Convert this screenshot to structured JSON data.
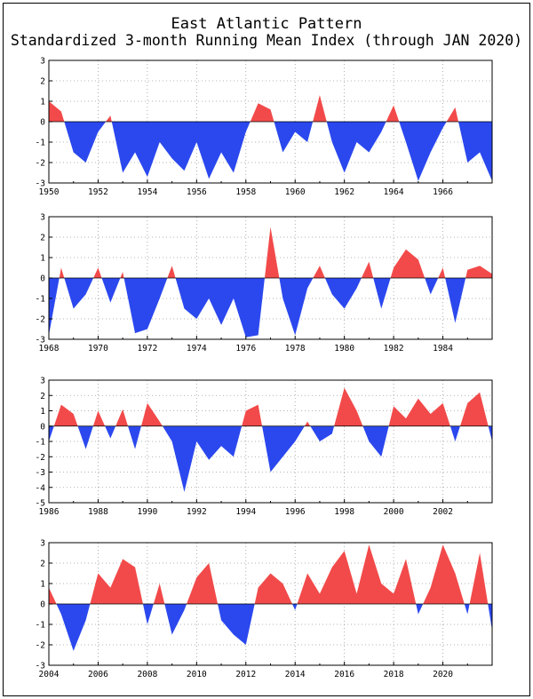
{
  "title": "East Atlantic Pattern",
  "subtitle": "Standardized 3-month Running Mean Index (through JAN 2020)",
  "colors": {
    "positive": "#f24a4a",
    "negative": "#2b48ee",
    "axis": "#000000",
    "grid": "#9a9a9a"
  },
  "chart_data": [
    {
      "type": "area",
      "ylim": [
        -3,
        3
      ],
      "yticks": [
        "3",
        "2",
        "1",
        "0",
        "-1",
        "-2",
        "-3"
      ],
      "xlim": [
        1950,
        1968
      ],
      "xticks": [
        "1950",
        "1952",
        "1954",
        "1956",
        "1958",
        "1960",
        "1962",
        "1964",
        "1966"
      ],
      "grid": true,
      "x": [
        1950,
        1950.5,
        1951,
        1951.5,
        1952,
        1952.5,
        1953,
        1953.5,
        1954,
        1954.5,
        1955,
        1955.5,
        1956,
        1956.5,
        1957,
        1957.5,
        1958,
        1958.5,
        1959,
        1959.5,
        1960,
        1960.5,
        1961,
        1961.5,
        1962,
        1962.5,
        1963,
        1963.5,
        1964,
        1964.5,
        1965,
        1965.5,
        1966,
        1966.5,
        1967,
        1967.5,
        1968
      ],
      "values": [
        1.0,
        0.5,
        -1.5,
        -2.0,
        -0.5,
        0.3,
        -2.5,
        -1.5,
        -2.7,
        -1.0,
        -1.8,
        -2.4,
        -1.0,
        -2.8,
        -1.5,
        -2.5,
        -0.5,
        0.9,
        0.6,
        -1.5,
        -0.5,
        -1.0,
        1.3,
        -1.0,
        -2.5,
        -1.0,
        -1.5,
        -0.5,
        0.8,
        -1.0,
        -2.9,
        -1.5,
        -0.3,
        0.7,
        -2.0,
        -1.5,
        -2.9
      ]
    },
    {
      "type": "area",
      "ylim": [
        -3,
        3
      ],
      "yticks": [
        "3",
        "2",
        "1",
        "0",
        "-1",
        "-2",
        "-3"
      ],
      "xlim": [
        1968,
        1986
      ],
      "xticks": [
        "1968",
        "1970",
        "1972",
        "1974",
        "1976",
        "1978",
        "1980",
        "1982",
        "1984"
      ],
      "grid": true,
      "x": [
        1968,
        1968.5,
        1969,
        1969.5,
        1970,
        1970.5,
        1971,
        1971.5,
        1972,
        1972.5,
        1973,
        1973.5,
        1974,
        1974.5,
        1975,
        1975.5,
        1976,
        1976.5,
        1977,
        1977.5,
        1978,
        1978.5,
        1979,
        1979.5,
        1980,
        1980.5,
        1981,
        1981.5,
        1982,
        1982.5,
        1983,
        1983.5,
        1984,
        1984.5,
        1985,
        1985.5,
        1986
      ],
      "values": [
        -2.8,
        0.5,
        -1.5,
        -0.8,
        0.5,
        -1.2,
        0.3,
        -2.7,
        -2.5,
        -1.0,
        0.6,
        -1.5,
        -2.0,
        -1.0,
        -2.3,
        -1.0,
        -2.9,
        -2.8,
        2.5,
        -1.0,
        -2.8,
        -0.5,
        0.6,
        -0.8,
        -1.5,
        -0.5,
        0.8,
        -1.5,
        0.5,
        1.4,
        0.9,
        -0.8,
        0.5,
        -2.2,
        0.4,
        0.6,
        0.2
      ]
    },
    {
      "type": "area",
      "ylim": [
        -5,
        3
      ],
      "yticks": [
        "3",
        "2",
        "1",
        "0",
        "-1",
        "-2",
        "-3",
        "-4",
        "-5"
      ],
      "xlim": [
        1986,
        2004
      ],
      "xticks": [
        "1986",
        "1988",
        "1990",
        "1992",
        "1994",
        "1996",
        "1998",
        "2000",
        "2002"
      ],
      "grid": true,
      "x": [
        1986,
        1986.5,
        1987,
        1987.5,
        1988,
        1988.5,
        1989,
        1989.5,
        1990,
        1990.5,
        1991,
        1991.5,
        1992,
        1992.5,
        1993,
        1993.5,
        1994,
        1994.5,
        1995,
        1995.5,
        1996,
        1996.5,
        1997,
        1997.5,
        1998,
        1998.5,
        1999,
        1999.5,
        2000,
        2000.5,
        2001,
        2001.5,
        2002,
        2002.5,
        2003,
        2003.5,
        2004
      ],
      "values": [
        -1.0,
        1.4,
        0.8,
        -1.5,
        1.0,
        -0.8,
        1.1,
        -1.5,
        1.5,
        0.3,
        -1.0,
        -4.3,
        -1.0,
        -2.2,
        -1.3,
        -2.0,
        1.0,
        1.4,
        -3.0,
        -2.0,
        -1.0,
        0.3,
        -1.0,
        -0.5,
        2.5,
        1.0,
        -1.0,
        -2.0,
        1.3,
        0.5,
        1.8,
        0.8,
        1.5,
        -1.0,
        1.5,
        2.2,
        -1.0
      ]
    },
    {
      "type": "area",
      "ylim": [
        -3,
        3
      ],
      "yticks": [
        "3",
        "2",
        "1",
        "0",
        "-1",
        "-2",
        "-3"
      ],
      "xlim": [
        2004,
        2022
      ],
      "xticks": [
        "2004",
        "2006",
        "2008",
        "2010",
        "2012",
        "2014",
        "2016",
        "2018",
        "2020"
      ],
      "grid": true,
      "x": [
        2004,
        2004.5,
        2005,
        2005.5,
        2006,
        2006.5,
        2007,
        2007.5,
        2008,
        2008.5,
        2009,
        2009.5,
        2010,
        2010.5,
        2011,
        2011.5,
        2012,
        2012.5,
        2013,
        2013.5,
        2014,
        2014.5,
        2015,
        2015.5,
        2016,
        2016.5,
        2017,
        2017.5,
        2018,
        2018.5,
        2019,
        2019.5,
        2020,
        2020.5,
        2021,
        2021.5,
        2022
      ],
      "values": [
        0.8,
        -0.5,
        -2.3,
        -0.8,
        1.5,
        0.8,
        2.2,
        1.8,
        -1.0,
        1.0,
        -1.5,
        -0.3,
        1.3,
        2.0,
        -0.8,
        -1.5,
        -2.0,
        0.8,
        1.5,
        1.0,
        -0.3,
        1.5,
        0.5,
        1.8,
        2.6,
        0.5,
        2.9,
        1.0,
        0.5,
        2.2,
        -0.5,
        0.8,
        2.9,
        1.5,
        -0.5,
        2.5,
        -1.3
      ]
    }
  ]
}
